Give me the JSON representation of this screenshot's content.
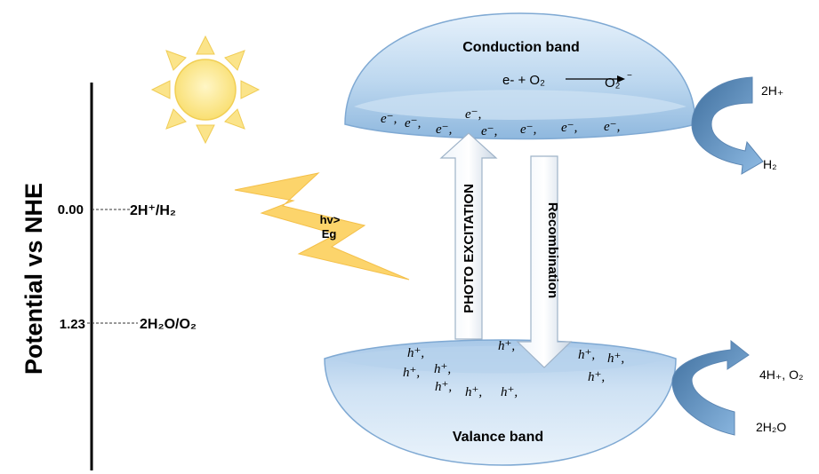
{
  "axis": {
    "label": "Potential vs NHE",
    "levels": [
      {
        "value": "0.00",
        "couple": "2H⁺/H₂"
      },
      {
        "value": "1.23",
        "couple": "2H₂O/O₂"
      }
    ]
  },
  "light": {
    "label_line1": "hv>",
    "label_line2": "Eg"
  },
  "conduction_band": {
    "title": "Conduction band",
    "reaction_left": "e- + O₂",
    "reaction_right": "O₂",
    "reaction_right_sup": "−",
    "electrons": [
      "e⁻,",
      "e⁻,",
      "e⁻,",
      "e⁻,",
      "e⁻,",
      "e⁻,",
      "e⁻,",
      "e⁻,"
    ]
  },
  "valence_band": {
    "title": "Valance band",
    "holes": [
      "h⁺,",
      "h⁺,",
      "h⁺,",
      "h⁺,",
      "h⁺,",
      "h⁺,",
      "h⁺,",
      "h⁺,",
      "h⁺,",
      "h⁺,",
      "h⁺,"
    ]
  },
  "arrows": {
    "up": "PHOTO EXCITATION",
    "down": "Recombination"
  },
  "products": {
    "cb_in": "2H₊",
    "cb_out": "H₂",
    "vb_out": "4H₊, O₂",
    "vb_in": "2H₂O"
  },
  "colors": {
    "band_fill": "#bcd8f0",
    "band_rim": "#7fa9d3",
    "band_highlight": "#e9f3fb",
    "sun_fill": "#fbe58a",
    "sun_stroke": "#f1cf55",
    "bolt": "#fcd46b",
    "curved_arrow": "#6d9cc9"
  }
}
